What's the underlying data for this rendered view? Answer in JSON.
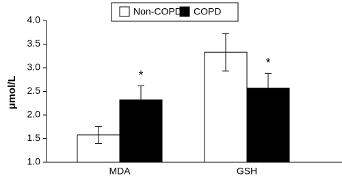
{
  "chart_data": {
    "type": "bar",
    "y_label": "μmol/L",
    "categories": [
      "MDA",
      "GSH"
    ],
    "series": [
      {
        "name": "Non-COPD",
        "color": "#ffffff",
        "values": [
          1.58,
          3.33
        ],
        "errors": [
          0.18,
          0.4
        ]
      },
      {
        "name": "COPD",
        "color": "#000000",
        "values": [
          2.32,
          2.57
        ],
        "errors": [
          0.3,
          0.31
        ]
      }
    ],
    "annotations": [
      "*",
      "*"
    ],
    "ylim": [
      1.0,
      4.0
    ],
    "yticks": [
      {
        "value": 1.0,
        "label": "1.0"
      },
      {
        "value": 1.5,
        "label": "1.5"
      },
      {
        "value": 2.0,
        "label": "2.0"
      },
      {
        "value": 2.5,
        "label": "2.5"
      },
      {
        "value": 3.0,
        "label": "3.0"
      },
      {
        "value": 3.5,
        "label": "3.5"
      },
      {
        "value": 4.0,
        "label": "4.0"
      }
    ],
    "grid": false
  }
}
